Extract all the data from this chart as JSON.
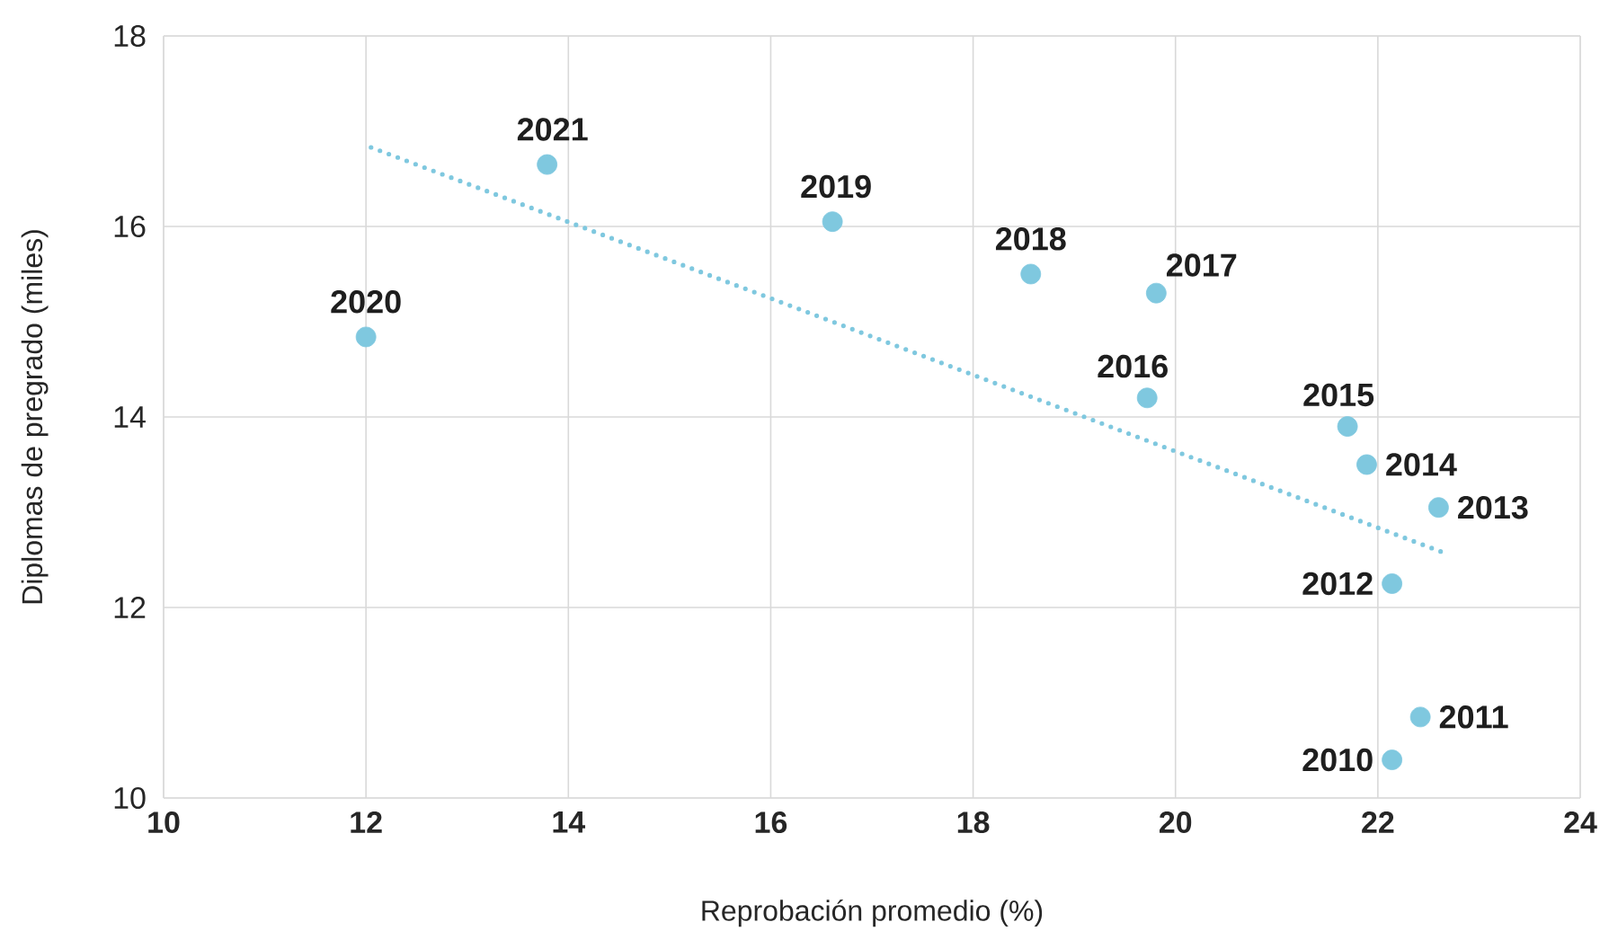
{
  "chart_data": {
    "type": "scatter",
    "xlabel": "Reprobación promedio (%)",
    "ylabel": "Diplomas de pregrado (miles)",
    "xlim": [
      10,
      24
    ],
    "xticks": [
      10,
      12,
      14,
      16,
      18,
      20,
      22,
      24
    ],
    "ylim": [
      10,
      18
    ],
    "yticks": [
      10,
      12,
      14,
      16,
      18
    ],
    "grid": true,
    "marker": "circle",
    "series": [
      {
        "color": "#7fc8df",
        "x": [
          22.14,
          22.42,
          22.14,
          22.6,
          21.89,
          21.7,
          19.72,
          19.81,
          18.57,
          16.61,
          12.0,
          13.79
        ],
        "values": [
          10.4,
          10.85,
          12.25,
          13.05,
          13.5,
          13.9,
          14.2,
          15.3,
          15.5,
          16.05,
          14.84,
          16.65
        ]
      },
      {
        "type": "line",
        "marker": "none",
        "line_style": "dotted",
        "color": "#7fc8df",
        "x": [
          12.05,
          22.64
        ],
        "values": [
          16.83,
          12.58
        ]
      }
    ],
    "annotations": [
      {
        "text": "2010",
        "x": 22.14,
        "y": 10.4
      },
      {
        "text": "2011",
        "x": 22.42,
        "y": 10.85
      },
      {
        "text": "2012",
        "x": 22.14,
        "y": 12.25
      },
      {
        "text": "2013",
        "x": 22.6,
        "y": 13.05
      },
      {
        "text": "2014",
        "x": 21.89,
        "y": 13.5
      },
      {
        "text": "2015",
        "x": 21.7,
        "y": 13.9
      },
      {
        "text": "2016",
        "x": 19.72,
        "y": 14.2
      },
      {
        "text": "2017",
        "x": 19.81,
        "y": 15.3
      },
      {
        "text": "2018",
        "x": 18.57,
        "y": 15.5
      },
      {
        "text": "2019",
        "x": 16.61,
        "y": 16.05
      },
      {
        "text": "2020",
        "x": 12.0,
        "y": 14.84
      },
      {
        "text": "2021",
        "x": 13.79,
        "y": 16.65
      }
    ]
  }
}
